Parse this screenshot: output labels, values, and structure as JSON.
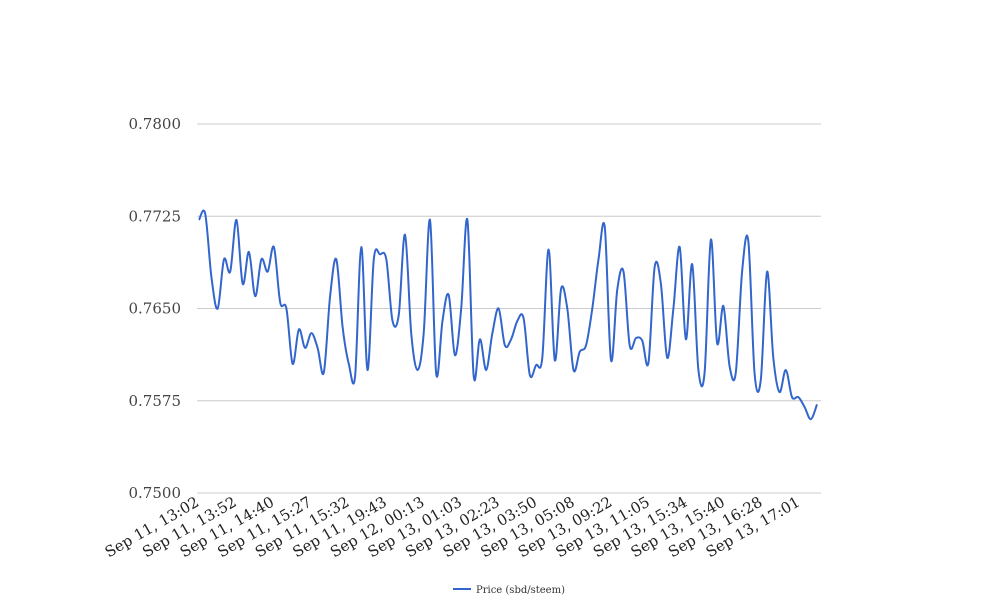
{
  "chart_data": {
    "type": "line",
    "title": "",
    "xlabel": "",
    "ylabel": "",
    "ylim": [
      0.75,
      0.78
    ],
    "yticks": [
      "0.7500",
      "0.7575",
      "0.7650",
      "0.7725",
      "0.7800"
    ],
    "grid": true,
    "legend_position": "bottom",
    "x_tick_labels": [
      "Sep 11, 13:02",
      "Sep 11, 13:52",
      "Sep 11, 14:40",
      "Sep 11, 15:27",
      "Sep 11, 15:32",
      "Sep 11, 19:43",
      "Sep 12, 00:13",
      "Sep 13, 01:03",
      "Sep 13, 02:23",
      "Sep 13, 03:50",
      "Sep 13, 05:08",
      "Sep 13, 09:22",
      "Sep 13, 11:05",
      "Sep 13, 15:34",
      "Sep 13, 15:40",
      "Sep 13, 16:28",
      "Sep 13, 17:01"
    ],
    "series": [
      {
        "name": "Price (sbd/steem)",
        "color": "#3366cc",
        "values": [
          0.7722,
          0.7727,
          0.7675,
          0.765,
          0.769,
          0.768,
          0.7722,
          0.767,
          0.7696,
          0.766,
          0.769,
          0.768,
          0.77,
          0.7655,
          0.765,
          0.7605,
          0.7633,
          0.7618,
          0.763,
          0.7618,
          0.7598,
          0.766,
          0.769,
          0.7635,
          0.7605,
          0.7595,
          0.77,
          0.76,
          0.769,
          0.7694,
          0.769,
          0.764,
          0.7645,
          0.771,
          0.763,
          0.76,
          0.763,
          0.7722,
          0.7597,
          0.764,
          0.7661,
          0.7612,
          0.765,
          0.7722,
          0.7595,
          0.7625,
          0.76,
          0.763,
          0.765,
          0.762,
          0.7625,
          0.764,
          0.7642,
          0.7596,
          0.7604,
          0.761,
          0.7698,
          0.7608,
          0.7666,
          0.765,
          0.76,
          0.7615,
          0.762,
          0.765,
          0.769,
          0.7716,
          0.7608,
          0.7665,
          0.768,
          0.762,
          0.7626,
          0.7624,
          0.7606,
          0.7684,
          0.767,
          0.761,
          0.765,
          0.77,
          0.7625,
          0.7686,
          0.76,
          0.7598,
          0.7706,
          0.7622,
          0.7652,
          0.7603,
          0.7598,
          0.768,
          0.7705,
          0.7597,
          0.7592,
          0.768,
          0.761,
          0.7582,
          0.76,
          0.7578,
          0.7578,
          0.757,
          0.756,
          0.7572
        ]
      }
    ]
  }
}
